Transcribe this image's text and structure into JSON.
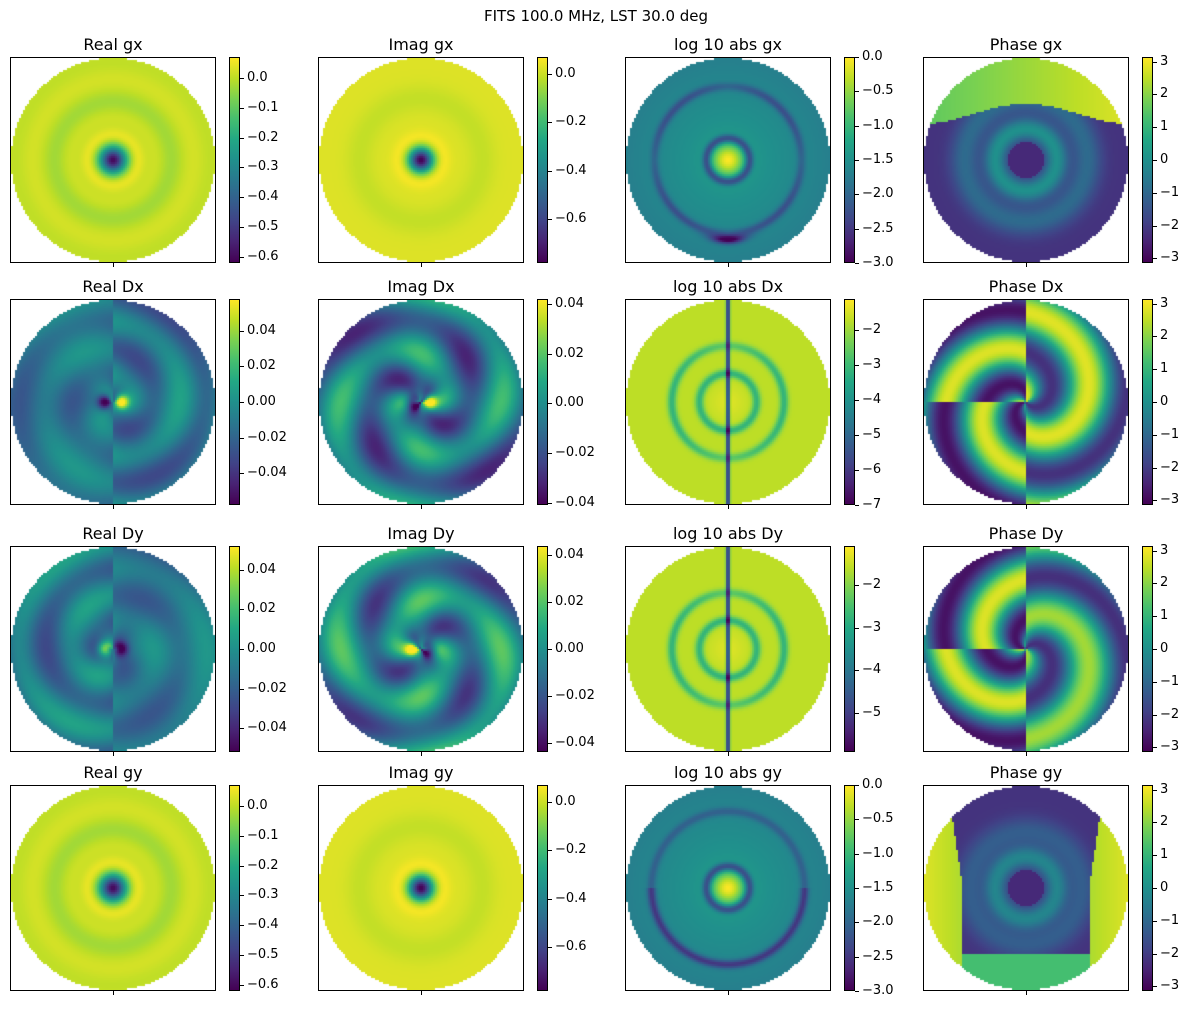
{
  "figure": {
    "suptitle": "FITS 100.0 MHz, LST 30.0 deg",
    "colormap": "viridis"
  },
  "chart_data": [
    {
      "type": "heatmap",
      "title": "Real gx",
      "component": "gx",
      "quantity": "real",
      "pattern": "gain_real",
      "colorbar": {
        "range": [
          -0.62,
          0.07
        ],
        "ticks": [
          0.0,
          -0.1,
          -0.2,
          -0.3,
          -0.4,
          -0.5,
          -0.6
        ],
        "tick_labels": [
          "0.0",
          "−0.1",
          "−0.2",
          "−0.3",
          "−0.4",
          "−0.5",
          "−0.6"
        ]
      }
    },
    {
      "type": "heatmap",
      "title": "Imag gx",
      "component": "gx",
      "quantity": "imag",
      "pattern": "gain_imag",
      "colorbar": {
        "range": [
          -0.78,
          0.07
        ],
        "ticks": [
          0.0,
          -0.2,
          -0.4,
          -0.6
        ],
        "tick_labels": [
          "0.0",
          "−0.2",
          "−0.4",
          "−0.6"
        ]
      }
    },
    {
      "type": "heatmap",
      "title": "log 10 abs gx",
      "component": "gx",
      "quantity": "log10_abs",
      "pattern": "gain_log",
      "colorbar": {
        "range": [
          -3.0,
          0.0
        ],
        "ticks": [
          0.0,
          -0.5,
          -1.0,
          -1.5,
          -2.0,
          -2.5,
          -3.0
        ],
        "tick_labels": [
          "0.0",
          "−0.5",
          "−1.0",
          "−1.5",
          "−2.0",
          "−2.5",
          "−3.0"
        ]
      }
    },
    {
      "type": "heatmap",
      "title": "Phase gx",
      "component": "gx",
      "quantity": "phase",
      "pattern": "phase_gx",
      "colorbar": {
        "range": [
          -3.14,
          3.14
        ],
        "ticks": [
          3,
          2,
          1,
          0,
          -1,
          -2,
          -3
        ],
        "tick_labels": [
          "3",
          "2",
          "1",
          "0",
          "−1",
          "−2",
          "−3"
        ]
      }
    },
    {
      "type": "heatmap",
      "title": "Real Dx",
      "component": "Dx",
      "quantity": "real",
      "pattern": "leak_real",
      "colorbar": {
        "range": [
          -0.058,
          0.058
        ],
        "ticks": [
          0.04,
          0.02,
          0.0,
          -0.02,
          -0.04
        ],
        "tick_labels": [
          "0.04",
          "0.02",
          "0.00",
          "−0.02",
          "−0.04"
        ]
      }
    },
    {
      "type": "heatmap",
      "title": "Imag Dx",
      "component": "Dx",
      "quantity": "imag",
      "pattern": "leak_imag",
      "colorbar": {
        "range": [
          -0.041,
          0.042
        ],
        "ticks": [
          0.04,
          0.02,
          0.0,
          -0.02,
          -0.04
        ],
        "tick_labels": [
          "0.04",
          "0.02",
          "0.00",
          "−0.02",
          "−0.04"
        ]
      }
    },
    {
      "type": "heatmap",
      "title": "log 10 abs Dx",
      "component": "Dx",
      "quantity": "log10_abs",
      "pattern": "leak_log",
      "colorbar": {
        "range": [
          -7.0,
          -1.1
        ],
        "ticks": [
          -2,
          -3,
          -4,
          -5,
          -6,
          -7
        ],
        "tick_labels": [
          "−2",
          "−3",
          "−4",
          "−5",
          "−6",
          "−7"
        ]
      }
    },
    {
      "type": "heatmap",
      "title": "Phase Dx",
      "component": "Dx",
      "quantity": "phase",
      "pattern": "phase_dx",
      "colorbar": {
        "range": [
          -3.14,
          3.14
        ],
        "ticks": [
          3,
          2,
          1,
          0,
          -1,
          -2,
          -3
        ],
        "tick_labels": [
          "3",
          "2",
          "1",
          "0",
          "−1",
          "−2",
          "−3"
        ]
      }
    },
    {
      "type": "heatmap",
      "title": "Real Dy",
      "component": "Dy",
      "quantity": "real",
      "pattern": "leak_real_y",
      "colorbar": {
        "range": [
          -0.052,
          0.052
        ],
        "ticks": [
          0.04,
          0.02,
          0.0,
          -0.02,
          -0.04
        ],
        "tick_labels": [
          "0.04",
          "0.02",
          "0.00",
          "−0.02",
          "−0.04"
        ]
      }
    },
    {
      "type": "heatmap",
      "title": "Imag Dy",
      "component": "Dy",
      "quantity": "imag",
      "pattern": "leak_imag_y",
      "colorbar": {
        "range": [
          -0.044,
          0.044
        ],
        "ticks": [
          0.04,
          0.02,
          0.0,
          -0.02,
          -0.04
        ],
        "tick_labels": [
          "0.04",
          "0.02",
          "0.00",
          "−0.02",
          "−0.04"
        ]
      }
    },
    {
      "type": "heatmap",
      "title": "log 10 abs Dy",
      "component": "Dy",
      "quantity": "log10_abs",
      "pattern": "leak_log",
      "colorbar": {
        "range": [
          -5.9,
          -1.1
        ],
        "ticks": [
          -2,
          -3,
          -4,
          -5
        ],
        "tick_labels": [
          "−2",
          "−3",
          "−4",
          "−5"
        ]
      }
    },
    {
      "type": "heatmap",
      "title": "Phase Dy",
      "component": "Dy",
      "quantity": "phase",
      "pattern": "phase_dy",
      "colorbar": {
        "range": [
          -3.14,
          3.14
        ],
        "ticks": [
          3,
          2,
          1,
          0,
          -1,
          -2,
          -3
        ],
        "tick_labels": [
          "3",
          "2",
          "1",
          "0",
          "−1",
          "−2",
          "−3"
        ]
      }
    },
    {
      "type": "heatmap",
      "title": "Real gy",
      "component": "gy",
      "quantity": "real",
      "pattern": "gain_real",
      "colorbar": {
        "range": [
          -0.62,
          0.07
        ],
        "ticks": [
          0.0,
          -0.1,
          -0.2,
          -0.3,
          -0.4,
          -0.5,
          -0.6
        ],
        "tick_labels": [
          "0.0",
          "−0.1",
          "−0.2",
          "−0.3",
          "−0.4",
          "−0.5",
          "−0.6"
        ]
      }
    },
    {
      "type": "heatmap",
      "title": "Imag gy",
      "component": "gy",
      "quantity": "imag",
      "pattern": "gain_imag",
      "colorbar": {
        "range": [
          -0.78,
          0.07
        ],
        "ticks": [
          0.0,
          -0.2,
          -0.4,
          -0.6
        ],
        "tick_labels": [
          "0.0",
          "−0.2",
          "−0.4",
          "−0.6"
        ]
      }
    },
    {
      "type": "heatmap",
      "title": "log 10 abs gy",
      "component": "gy",
      "quantity": "log10_abs",
      "pattern": "gain_log_y",
      "colorbar": {
        "range": [
          -3.0,
          0.0
        ],
        "ticks": [
          0.0,
          -0.5,
          -1.0,
          -1.5,
          -2.0,
          -2.5,
          -3.0
        ],
        "tick_labels": [
          "0.0",
          "−0.5",
          "−1.0",
          "−1.5",
          "−2.0",
          "−2.5",
          "−3.0"
        ]
      }
    },
    {
      "type": "heatmap",
      "title": "Phase gy",
      "component": "gy",
      "quantity": "phase",
      "pattern": "phase_gy",
      "colorbar": {
        "range": [
          -3.14,
          3.14
        ],
        "ticks": [
          3,
          2,
          1,
          0,
          -1,
          -2,
          -3
        ],
        "tick_labels": [
          "3",
          "2",
          "1",
          "0",
          "−1",
          "−2",
          "−3"
        ]
      }
    }
  ]
}
